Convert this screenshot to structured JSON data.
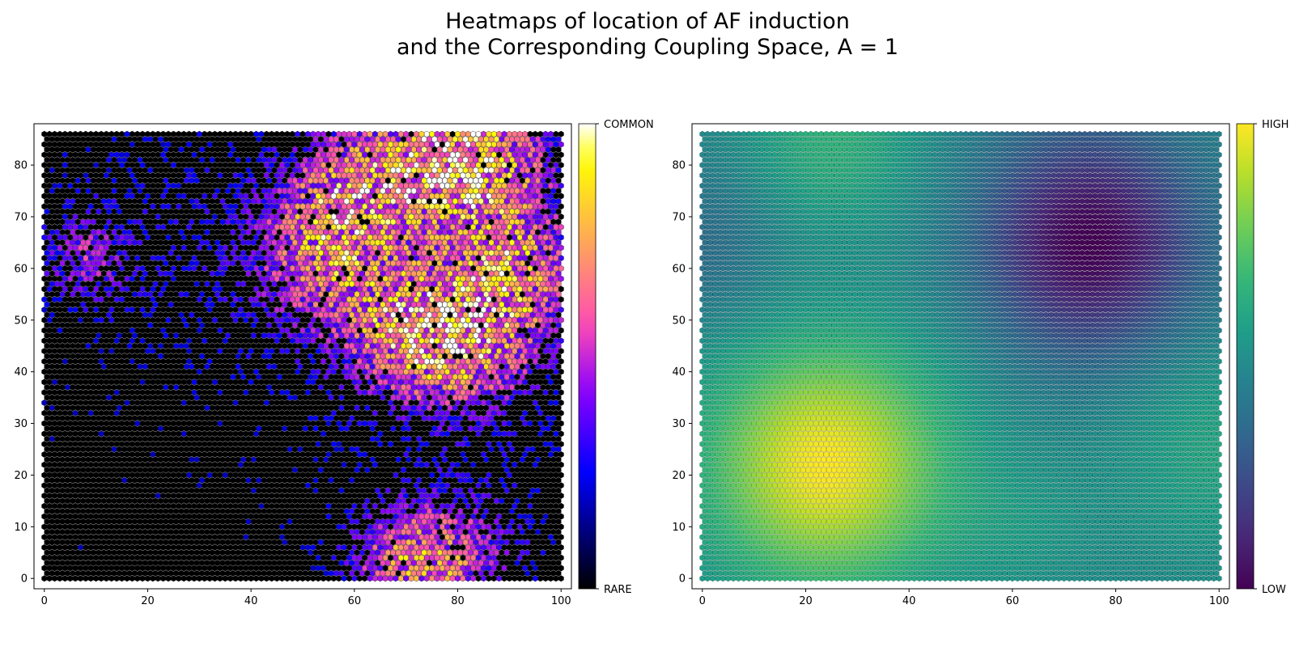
{
  "chart_data": [
    {
      "type": "heatmap",
      "subtype": "hexbin",
      "panel": "left",
      "title_lines": [
        "Heatmaps of location of AF induction",
        "and the Corresponding Coupling Space, A = 1"
      ],
      "xlim": [
        0,
        100
      ],
      "ylim": [
        0,
        86
      ],
      "x_ticks": [
        0,
        20,
        40,
        60,
        80,
        100
      ],
      "y_ticks": [
        0,
        10,
        20,
        30,
        40,
        50,
        60,
        70,
        80
      ],
      "grid_size": [
        100,
        86
      ],
      "colormap": "gnuplot2",
      "colorbar_labels": {
        "top": "COMMON",
        "bottom": "RARE"
      },
      "intensity_hotspots": [
        {
          "x": 82,
          "y": 47,
          "sigma": 9,
          "weight": 0.55
        },
        {
          "x": 85,
          "y": 80,
          "sigma": 9,
          "weight": 0.5
        },
        {
          "x": 72,
          "y": 82,
          "sigma": 10,
          "weight": 0.45
        },
        {
          "x": 55,
          "y": 62,
          "sigma": 10,
          "weight": 0.4
        },
        {
          "x": 92,
          "y": 60,
          "sigma": 8,
          "weight": 0.4
        },
        {
          "x": 70,
          "y": 47,
          "sigma": 8,
          "weight": 0.4
        },
        {
          "x": 78,
          "y": 3,
          "sigma": 8,
          "weight": 0.35
        },
        {
          "x": 68,
          "y": 3,
          "sigma": 7,
          "weight": 0.3
        },
        {
          "x": 8,
          "y": 62,
          "sigma": 6,
          "weight": 0.25
        },
        {
          "x": 58,
          "y": 73,
          "sigma": 8,
          "weight": 0.3
        }
      ]
    },
    {
      "type": "heatmap",
      "subtype": "hexbin",
      "panel": "right",
      "xlim": [
        0,
        100
      ],
      "ylim": [
        0,
        86
      ],
      "x_ticks": [
        0,
        20,
        40,
        60,
        80,
        100
      ],
      "y_ticks": [
        0,
        10,
        20,
        30,
        40,
        50,
        60,
        70,
        80
      ],
      "grid_size": [
        100,
        86
      ],
      "colormap": "viridis",
      "colorbar_labels": {
        "top": "HIGH",
        "bottom": "LOW"
      },
      "field": {
        "base": 0.48,
        "peaks": [
          {
            "x": 24,
            "y": 22,
            "sigma": 16,
            "amp": 0.52
          },
          {
            "x": 25,
            "y": 85,
            "sigma": 12,
            "amp": 0.17
          },
          {
            "x": 100,
            "y": 25,
            "sigma": 14,
            "amp": 0.12
          },
          {
            "x": 62,
            "y": 10,
            "sigma": 10,
            "amp": 0.06
          }
        ],
        "troughs": [
          {
            "x": 75,
            "y": 65,
            "sigma": 15,
            "amp": 0.48
          },
          {
            "x": 0,
            "y": 65,
            "sigma": 11,
            "amp": 0.12
          }
        ]
      }
    }
  ]
}
